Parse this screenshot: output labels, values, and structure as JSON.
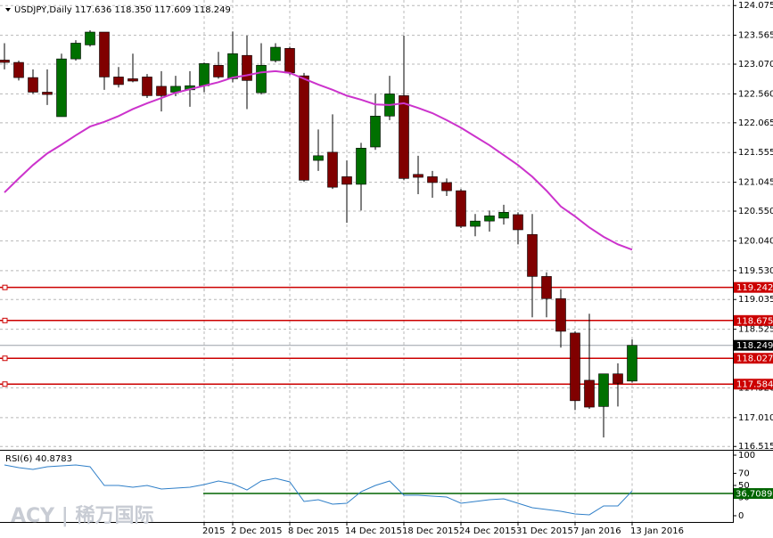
{
  "chart_data": [
    {
      "type": "candlestick",
      "title": "USDJPY,Daily 117.636 118.350 117.609 118.249",
      "categories": [
        null,
        null,
        null,
        null,
        null,
        null,
        null,
        null,
        null,
        null,
        null,
        null,
        null,
        null,
        "2015",
        null,
        "2 Dec 2015",
        null,
        null,
        null,
        "8 Dec 2015",
        null,
        null,
        null,
        "14 Dec 2015",
        null,
        null,
        null,
        "18 Dec 2015",
        null,
        null,
        null,
        "24 Dec 2015",
        null,
        null,
        null,
        "31 Dec 2015",
        null,
        null,
        null,
        "7 Jan 2016",
        null,
        null,
        null,
        "13 Jan 2016"
      ],
      "open": [
        123.14,
        123.1,
        122.84,
        122.59,
        122.17,
        123.16,
        123.4,
        123.62,
        122.85,
        122.82,
        122.85,
        122.69,
        122.59,
        122.63,
        122.7,
        123.05,
        122.82,
        123.22,
        122.58,
        123.13,
        123.34,
        122.87,
        121.42,
        121.56,
        121.14,
        121.01,
        121.65,
        122.18,
        122.53,
        121.18,
        121.14,
        121.04,
        120.9,
        120.29,
        120.38,
        120.43,
        120.49,
        120.15,
        119.43,
        119.05,
        118.46,
        117.65,
        117.2,
        117.76,
        117.636
      ],
      "high": [
        123.43,
        123.13,
        122.98,
        122.98,
        123.25,
        123.48,
        123.65,
        123.62,
        123.02,
        123.25,
        122.9,
        122.95,
        122.87,
        122.95,
        123.1,
        123.28,
        123.63,
        123.56,
        123.43,
        123.43,
        123.37,
        122.92,
        121.95,
        122.21,
        121.42,
        121.72,
        122.56,
        122.87,
        123.56,
        121.5,
        121.24,
        121.11,
        120.93,
        120.5,
        120.56,
        120.66,
        120.53,
        120.5,
        119.5,
        119.21,
        118.49,
        118.79,
        117.76,
        117.94,
        118.35
      ],
      "low": [
        122.98,
        122.79,
        122.56,
        122.37,
        122.17,
        123.13,
        123.37,
        122.63,
        122.67,
        122.76,
        122.49,
        122.26,
        122.52,
        122.34,
        122.59,
        122.82,
        122.76,
        122.3,
        122.55,
        123.1,
        122.88,
        121.05,
        121.24,
        120.93,
        120.35,
        120.56,
        121.6,
        122.11,
        121.08,
        120.84,
        120.78,
        120.81,
        120.26,
        120.12,
        120.2,
        120.32,
        119.98,
        118.73,
        118.73,
        118.21,
        117.14,
        117.16,
        116.67,
        117.2,
        117.609
      ],
      "close": [
        123.1,
        122.84,
        122.59,
        122.55,
        123.16,
        123.43,
        123.62,
        122.85,
        122.72,
        122.78,
        122.53,
        122.53,
        122.69,
        122.7,
        123.08,
        122.85,
        123.25,
        122.79,
        123.05,
        123.36,
        122.92,
        121.08,
        121.5,
        120.96,
        121.01,
        121.63,
        122.18,
        122.56,
        121.11,
        121.13,
        121.04,
        120.9,
        120.29,
        120.38,
        120.47,
        120.53,
        120.23,
        119.43,
        119.05,
        118.49,
        117.3,
        117.19,
        117.76,
        117.6,
        118.249
      ],
      "bull_color": "#007000",
      "bear_color": "#800000",
      "wick_color": "#000000",
      "series": [
        {
          "color": "#cc33cc",
          "values": [
            120.87,
            121.11,
            121.34,
            121.54,
            121.69,
            121.85,
            122.0,
            122.08,
            122.18,
            122.3,
            122.4,
            122.49,
            122.58,
            122.64,
            122.7,
            122.76,
            122.84,
            122.88,
            122.93,
            122.95,
            122.92,
            122.82,
            122.72,
            122.63,
            122.53,
            122.46,
            122.38,
            122.37,
            122.4,
            122.32,
            122.23,
            122.11,
            121.98,
            121.83,
            121.68,
            121.51,
            121.34,
            121.14,
            120.9,
            120.63,
            120.46,
            120.27,
            120.11,
            119.98,
            119.89
          ]
        }
      ],
      "levels": [
        119.242,
        118.675,
        118.027,
        117.584
      ],
      "level_color": "#cc0000",
      "ylim": [
        116.45,
        124.17
      ],
      "yticks": [
        124.075,
        123.565,
        {
          "value": 123.07,
          "label": "123.070"
        },
        {
          "value": 122.56,
          "label": "122.560"
        },
        122.065,
        121.555,
        121.045,
        {
          "value": 120.55,
          "label": "120.550"
        },
        {
          "value": 120.04,
          "label": "120.040"
        },
        {
          "value": 119.53,
          "label": "119.530"
        },
        119.035,
        118.525,
        {
          "value": 117.52,
          "label": "117.520"
        },
        {
          "value": 117.01,
          "label": "117.010"
        },
        116.515
      ],
      "grid": true,
      "watermark": "ACY | 稀万国际"
    },
    {
      "type": "line",
      "title": "RSI(6) 40.8783",
      "color": "#2f7fc8",
      "values": [
        83.8,
        79.4,
        76.5,
        80.9,
        82.4,
        83.8,
        80.9,
        50.0,
        50.0,
        47.1,
        50.0,
        44.1,
        45.6,
        47.1,
        51.5,
        57.4,
        52.9,
        42.6,
        57.4,
        61.8,
        55.9,
        23.5,
        26.5,
        19.1,
        20.6,
        39.7,
        50.0,
        57.4,
        33.8,
        33.8,
        32.4,
        30.9,
        20.6,
        23.5,
        26.5,
        27.9,
        20.6,
        13.2,
        10.3,
        7.4,
        2.9,
        1.5,
        16.2,
        16.2,
        40.8783
      ],
      "level": 36.7089,
      "level_color": "#006400",
      "ylim": [
        0,
        100
      ],
      "yticks": [
        100,
        70,
        50,
        30,
        0
      ]
    }
  ]
}
